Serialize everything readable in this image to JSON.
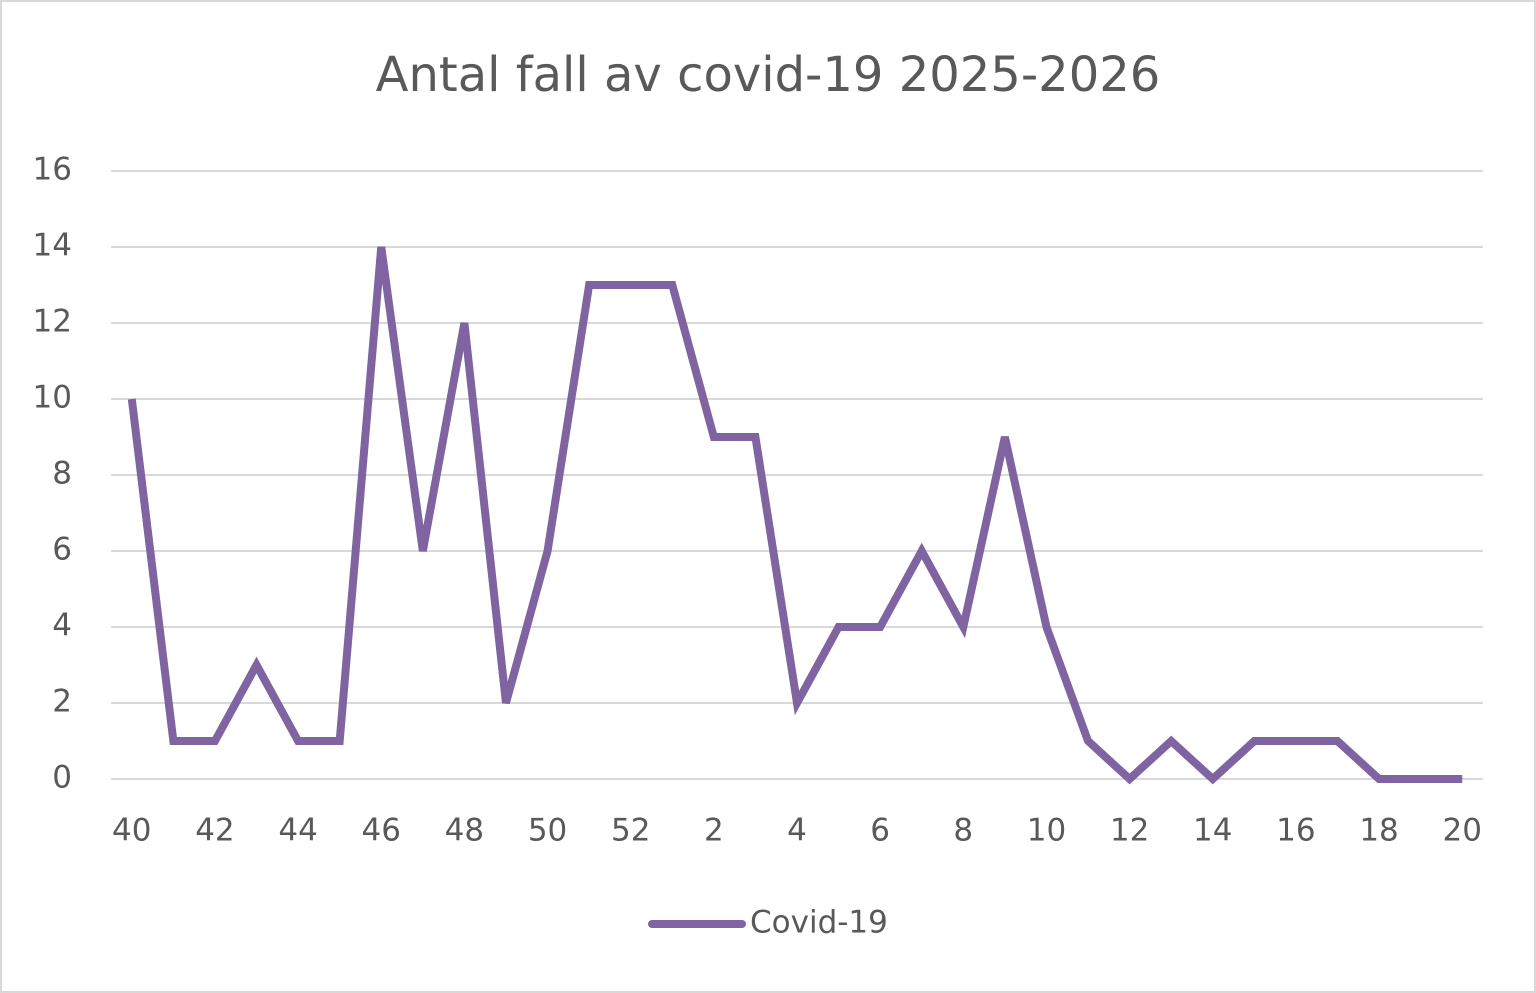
{
  "chart_data": {
    "type": "line",
    "title": "Antal fall av covid-19 2025-2026",
    "categories": [
      "40",
      null,
      "42",
      null,
      "44",
      null,
      "46",
      null,
      "48",
      null,
      "50",
      null,
      "52",
      null,
      "2",
      null,
      "4",
      null,
      "6",
      null,
      "8",
      null,
      "10",
      null,
      "12",
      null,
      "14",
      null,
      "16",
      null,
      "18",
      null,
      "20"
    ],
    "series": [
      {
        "name": "Covid-19",
        "color": "#8064a2",
        "values": [
          10,
          1,
          1,
          3,
          1,
          1,
          14,
          6,
          12,
          2,
          6,
          13,
          13,
          13,
          9,
          9,
          2,
          4,
          4,
          6,
          4,
          9,
          4,
          1,
          0,
          1,
          0,
          1,
          1,
          1,
          0,
          0,
          0
        ]
      }
    ],
    "ylim": [
      0,
      16
    ],
    "yticks": [
      0,
      2,
      4,
      6,
      8,
      10,
      12,
      14,
      16
    ],
    "grid": true,
    "legend": "bottom"
  }
}
